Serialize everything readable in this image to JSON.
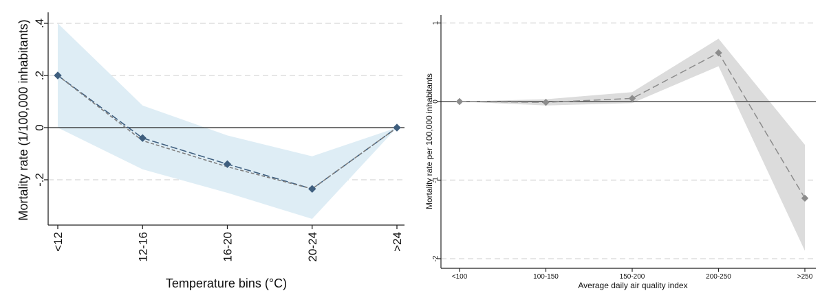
{
  "chart_data": [
    {
      "type": "line",
      "title": "",
      "xlabel": "Temperature bins (°C)",
      "ylabel": "Mortality rate (1/100,000 inhabitants)",
      "categories": [
        "<12",
        "12-16",
        "16-20",
        "20-24",
        ">24"
      ],
      "ylim": [
        -0.38,
        0.4
      ],
      "yticks": [
        {
          "value": 0.4,
          "label": ".4"
        },
        {
          "value": 0.2,
          "label": ".2"
        },
        {
          "value": 0,
          "label": "0"
        },
        {
          "value": -0.2,
          "label": "-.2"
        }
      ],
      "grid": true,
      "series": [
        {
          "values": [
            0.2,
            -0.04,
            -0.14,
            -0.235,
            0.0
          ],
          "style": "long-dash with diamond markers",
          "color": "#3f5f7f"
        },
        {
          "values": [
            0.2,
            -0.05,
            -0.15,
            -0.235,
            0.0
          ],
          "style": "short-dash",
          "color": "#7f7f7f"
        }
      ],
      "ci_band": {
        "lower": [
          0.0,
          -0.16,
          -0.25,
          -0.35,
          0.0
        ],
        "upper": [
          0.4,
          0.085,
          -0.03,
          -0.11,
          0.0
        ],
        "color": "#deedf5"
      }
    },
    {
      "type": "line",
      "title": "",
      "xlabel": "Average daily air quality index",
      "ylabel": "Mortality rate per 100,000 inhabitants",
      "categories": [
        "<100",
        "100-150",
        "150-200",
        "200-250",
        ">250"
      ],
      "ylim": [
        -2.05,
        1.05
      ],
      "yticks": [
        {
          "value": 1,
          "label": "1"
        },
        {
          "value": 0,
          "label": "0"
        },
        {
          "value": -1,
          "label": "-1"
        },
        {
          "value": -2,
          "label": "-2"
        }
      ],
      "grid": true,
      "series": [
        {
          "values": [
            0.0,
            -0.01,
            0.04,
            0.62,
            -1.23
          ],
          "style": "long-dash with diamond markers",
          "color": "#8c8c8c"
        }
      ],
      "ci_band": {
        "lower": [
          0.0,
          -0.05,
          -0.02,
          0.45,
          -1.9
        ],
        "upper": [
          0.0,
          0.03,
          0.12,
          0.8,
          -0.55
        ],
        "color": "#dcdcdc"
      }
    }
  ]
}
